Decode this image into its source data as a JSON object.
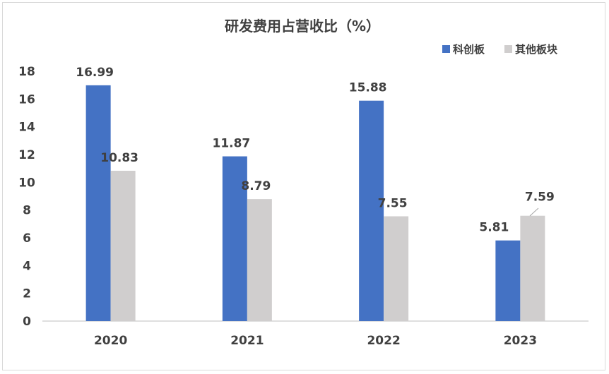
{
  "chart_data": {
    "type": "bar",
    "title": "研发费用占营收比（%）",
    "categories": [
      "2020",
      "2021",
      "2022",
      "2023"
    ],
    "series": [
      {
        "name": "科创板",
        "values": [
          16.99,
          11.87,
          15.88,
          5.81
        ],
        "color": "#4472c4"
      },
      {
        "name": "其他板块",
        "values": [
          10.83,
          8.79,
          7.55,
          7.59
        ],
        "color": "#d0cece"
      }
    ],
    "ylim": [
      0,
      18
    ],
    "yticks": [
      "0",
      "2",
      "4",
      "6",
      "8",
      "10",
      "12",
      "14",
      "16",
      "18"
    ],
    "data_labels": [
      [
        "16.99",
        "11.87",
        "15.88",
        "5.81"
      ],
      [
        "10.83",
        "8.79",
        "7.55",
        "7.59"
      ]
    ],
    "legend_position": "top-right",
    "grid": false
  }
}
